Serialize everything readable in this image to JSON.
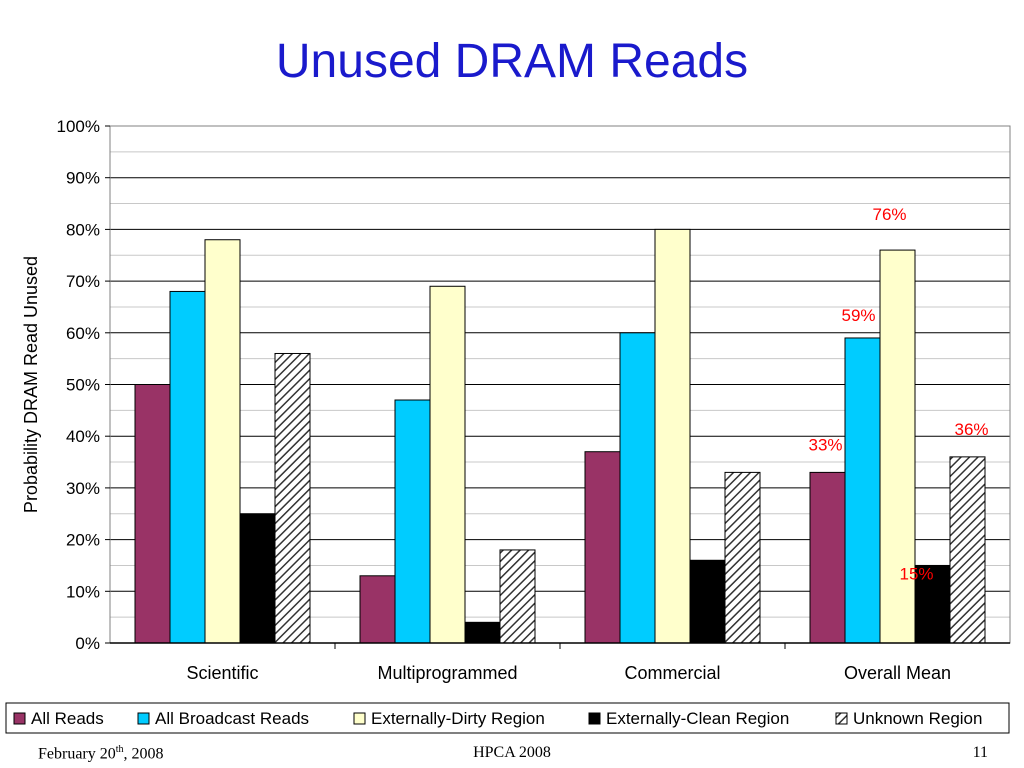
{
  "slide": {
    "title": "Unused DRAM Reads",
    "footer_date_prefix": "February 20",
    "footer_date_sup": "th",
    "footer_date_suffix": ", 2008",
    "footer_conference": "HPCA 2008",
    "footer_page": "11"
  },
  "chart_data": {
    "type": "bar",
    "title": "",
    "xlabel": "",
    "ylabel": "Probability DRAM Read Unused",
    "ylim": [
      0,
      1
    ],
    "yticks": [
      "0%",
      "10%",
      "20%",
      "30%",
      "40%",
      "50%",
      "60%",
      "70%",
      "80%",
      "90%",
      "100%"
    ],
    "grid": true,
    "legend": "bottom",
    "categories": [
      "Scientific",
      "Multiprogrammed",
      "Commercial",
      "Overall Mean"
    ],
    "series": [
      {
        "name": "All Reads",
        "color": "#993366",
        "pattern": "solid",
        "values": [
          0.5,
          0.13,
          0.37,
          0.33
        ]
      },
      {
        "name": "All Broadcast Reads",
        "color": "#00ccff",
        "pattern": "solid",
        "values": [
          0.68,
          0.47,
          0.6,
          0.59
        ]
      },
      {
        "name": "Externally-Dirty Region",
        "color": "#ffffcc",
        "pattern": "solid",
        "values": [
          0.78,
          0.69,
          0.8,
          0.76
        ]
      },
      {
        "name": "Externally-Clean Region",
        "color": "#000000",
        "pattern": "solid",
        "values": [
          0.25,
          0.04,
          0.16,
          0.15
        ]
      },
      {
        "name": "Unknown Region",
        "color": "#ffffff",
        "pattern": "hatch",
        "values": [
          0.56,
          0.18,
          0.33,
          0.36
        ]
      }
    ],
    "annotations": [
      {
        "text": "33%",
        "category": 3,
        "series": 0
      },
      {
        "text": "59%",
        "category": 3,
        "series": 1
      },
      {
        "text": "76%",
        "category": 3,
        "series": 2
      },
      {
        "text": "15%",
        "category": 3,
        "series": 3
      },
      {
        "text": "36%",
        "category": 3,
        "series": 4
      }
    ],
    "annotation_color": "#ff0000"
  }
}
